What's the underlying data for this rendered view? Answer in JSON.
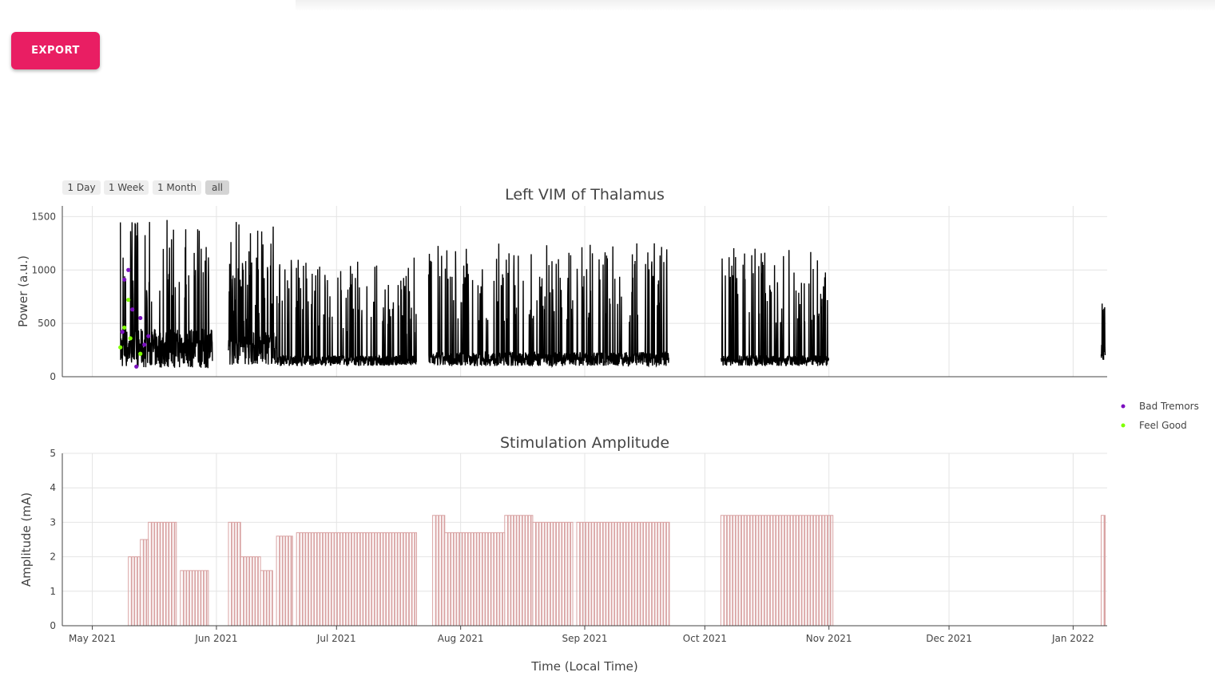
{
  "toolbar": {
    "export_label": "EXPORT"
  },
  "range_selector": [
    {
      "label": "1 Day",
      "active": false
    },
    {
      "label": "1 Week",
      "active": false
    },
    {
      "label": "1 Month",
      "active": false
    },
    {
      "label": "all",
      "active": true
    }
  ],
  "chart_data": [
    {
      "type": "line",
      "title": "Left VIM of Thalamus",
      "ylabel": "Power (a.u.)",
      "ylim": [
        0,
        1600
      ],
      "yticks": [
        0,
        500,
        1000,
        1500
      ],
      "grid": true,
      "line_color": "#000000",
      "series": [
        {
          "segments": [
            {
              "start": "2021-05-08",
              "end": "2021-05-31",
              "low_range": [
                80,
                450
              ],
              "peak_range": [
                700,
                1510
              ]
            },
            {
              "start": "2021-06-04",
              "end": "2021-06-16",
              "low_range": [
                110,
                420
              ],
              "peak_range": [
                500,
                1510
              ]
            },
            {
              "start": "2021-06-16",
              "end": "2021-07-21",
              "low_range": [
                100,
                200
              ],
              "peak_range": [
                400,
                1120
              ]
            },
            {
              "start": "2021-07-24",
              "end": "2021-09-22",
              "low_range": [
                100,
                230
              ],
              "peak_range": [
                500,
                1250
              ]
            },
            {
              "start": "2021-10-05",
              "end": "2021-11-01",
              "low_range": [
                100,
                200
              ],
              "peak_range": [
                500,
                1210
              ]
            },
            {
              "start": "2022-01-08",
              "end": "2022-01-09",
              "low_range": [
                150,
                300
              ],
              "peak_range": [
                600,
                740
              ]
            }
          ]
        },
        {
          "name": "Bad Tremors",
          "color": "#7b0fbf",
          "points": [
            {
              "x": "2021-05-08T12:00",
              "y": 420
            },
            {
              "x": "2021-05-09T00:00",
              "y": 910
            },
            {
              "x": "2021-05-10T00:00",
              "y": 1000
            },
            {
              "x": "2021-05-11T00:00",
              "y": 630
            },
            {
              "x": "2021-05-12T00:00",
              "y": 95
            },
            {
              "x": "2021-05-13T00:00",
              "y": 550
            },
            {
              "x": "2021-05-14T00:00",
              "y": 300
            },
            {
              "x": "2021-05-15T00:00",
              "y": 380
            }
          ]
        },
        {
          "name": "Feel Good",
          "color": "#7fff00",
          "points": [
            {
              "x": "2021-05-08T00:00",
              "y": 275
            },
            {
              "x": "2021-05-09T00:00",
              "y": 460
            },
            {
              "x": "2021-05-10T00:00",
              "y": 720
            },
            {
              "x": "2021-05-10T12:00",
              "y": 360
            },
            {
              "x": "2021-05-13T00:00",
              "y": 215
            }
          ]
        }
      ]
    },
    {
      "type": "line",
      "title": "Stimulation Amplitude",
      "ylabel": "Amplitude (mA)",
      "xlabel": "Time (Local Time)",
      "ylim": [
        0,
        5
      ],
      "yticks": [
        0,
        1,
        2,
        3,
        4,
        5
      ],
      "xticks": [
        "May 2021",
        "Jun 2021",
        "Jul 2021",
        "Aug 2021",
        "Sep 2021",
        "Oct 2021",
        "Nov 2021",
        "Dec 2021",
        "Jan 2022"
      ],
      "grid": true,
      "line_color": "#d9a3a3",
      "series": [
        {
          "segments": [
            {
              "start": "2021-05-10",
              "end": "2021-05-13",
              "value": 2.0
            },
            {
              "start": "2021-05-13",
              "end": "2021-05-15",
              "value": 2.5
            },
            {
              "start": "2021-05-15",
              "end": "2021-05-22",
              "value": 3.0
            },
            {
              "start": "2021-05-23",
              "end": "2021-05-30",
              "value": 1.6
            },
            {
              "start": "2021-06-04",
              "end": "2021-06-07",
              "value": 3.0
            },
            {
              "start": "2021-06-07",
              "end": "2021-06-12",
              "value": 2.0
            },
            {
              "start": "2021-06-12",
              "end": "2021-06-15",
              "value": 1.6
            },
            {
              "start": "2021-06-16",
              "end": "2021-06-20",
              "value": 2.6
            },
            {
              "start": "2021-06-21",
              "end": "2021-07-21",
              "value": 2.7
            },
            {
              "start": "2021-07-25",
              "end": "2021-07-28",
              "value": 3.2
            },
            {
              "start": "2021-07-28",
              "end": "2021-08-12",
              "value": 2.7
            },
            {
              "start": "2021-08-12",
              "end": "2021-08-19",
              "value": 3.2
            },
            {
              "start": "2021-08-19",
              "end": "2021-08-29",
              "value": 3.0
            },
            {
              "start": "2021-08-30",
              "end": "2021-09-22",
              "value": 3.0
            },
            {
              "start": "2021-10-05",
              "end": "2021-11-02",
              "value": 3.2
            },
            {
              "start": "2022-01-08",
              "end": "2022-01-09",
              "value": 3.2
            }
          ]
        }
      ]
    }
  ],
  "legend": {
    "placement": "right",
    "items": [
      {
        "name": "Bad Tremors",
        "color": "#7b0fbf"
      },
      {
        "name": "Feel Good",
        "color": "#7fff00"
      }
    ]
  }
}
